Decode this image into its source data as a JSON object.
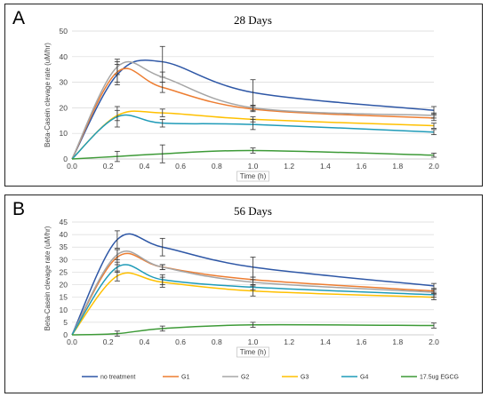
{
  "chart_data": [
    {
      "panel_label": "A",
      "type": "line",
      "title": "28 Days",
      "xlabel": "Time (h)",
      "ylabel": "Beta-Casein clevage rate (uM/hr)",
      "xlim": [
        0.0,
        2.0
      ],
      "ylim": [
        0,
        50
      ],
      "x_ticks": [
        "0.0",
        "0.2",
        "0.4",
        "0.6",
        "0.8",
        "1.0",
        "1.2",
        "1.4",
        "1.6",
        "1.8",
        "2.0"
      ],
      "y_ticks": [
        "0",
        "10",
        "20",
        "30",
        "40",
        "50"
      ],
      "grid": "horizontal",
      "x": [
        0,
        0.25,
        0.5,
        1.0,
        2.0
      ],
      "series": [
        {
          "name": "no treatment",
          "color": "#2e57a6",
          "values": [
            0,
            33,
            38,
            26,
            19
          ],
          "err": [
            0,
            4,
            6,
            5,
            1.5
          ]
        },
        {
          "name": "G1",
          "color": "#ed7d31",
          "values": [
            0,
            34,
            28,
            19.5,
            16
          ],
          "err": [
            0,
            4,
            2,
            1,
            1
          ]
        },
        {
          "name": "G2",
          "color": "#a5a5a5",
          "values": [
            0,
            36,
            32,
            20,
            17
          ],
          "err": [
            0,
            3,
            2,
            1,
            1
          ]
        },
        {
          "name": "G3",
          "color": "#ffc000",
          "values": [
            0,
            17,
            18,
            15.5,
            13
          ],
          "err": [
            0,
            2,
            1.5,
            1,
            1
          ]
        },
        {
          "name": "G4",
          "color": "#1f9bb8",
          "values": [
            0,
            16.5,
            14,
            13.5,
            10.5
          ],
          "err": [
            0,
            4,
            1.5,
            2,
            1
          ]
        },
        {
          "name": "17.5ug EGCG",
          "color": "#3d9a37",
          "values": [
            0,
            1,
            2,
            3.3,
            1.5
          ],
          "err": [
            0,
            2,
            3.5,
            1,
            0.8
          ]
        }
      ]
    },
    {
      "panel_label": "B",
      "type": "line",
      "title": "56 Days",
      "xlabel": "Time (h)",
      "ylabel": "Beta-Casein clevage rate (uM/hr)",
      "xlim": [
        0.0,
        2.0
      ],
      "ylim": [
        0,
        45
      ],
      "x_ticks": [
        "0.0",
        "0.2",
        "0.4",
        "0.6",
        "0.8",
        "1.0",
        "1.2",
        "1.4",
        "1.6",
        "1.8",
        "2.0"
      ],
      "y_ticks": [
        "0",
        "5",
        "10",
        "15",
        "20",
        "25",
        "30",
        "35",
        "40",
        "45"
      ],
      "grid": "horizontal",
      "legend_position": "bottom",
      "x": [
        0,
        0.25,
        0.5,
        1.0,
        2.0
      ],
      "series": [
        {
          "name": "no treatment",
          "color": "#2e57a6",
          "values": [
            0,
            38,
            35,
            27,
            19.5
          ],
          "err": [
            0,
            3.5,
            3.5,
            4,
            1
          ]
        },
        {
          "name": "G1",
          "color": "#ed7d31",
          "values": [
            0,
            31,
            27,
            22,
            17.5
          ],
          "err": [
            0,
            3,
            1,
            1,
            1
          ]
        },
        {
          "name": "G2",
          "color": "#a5a5a5",
          "values": [
            0,
            32,
            27,
            21,
            17
          ],
          "err": [
            0,
            2,
            1,
            1,
            1
          ]
        },
        {
          "name": "G3",
          "color": "#ffc000",
          "values": [
            0,
            23.5,
            21,
            17.5,
            15
          ],
          "err": [
            0,
            2,
            2,
            2,
            1
          ]
        },
        {
          "name": "G4",
          "color": "#1f9bb8",
          "values": [
            0,
            27,
            22,
            19,
            16
          ],
          "err": [
            0,
            2,
            2,
            1,
            1
          ]
        },
        {
          "name": "17.5ug EGCG",
          "color": "#3d9a37",
          "values": [
            0,
            0.5,
            2.5,
            4,
            3.7
          ],
          "err": [
            0,
            1,
            1,
            1,
            1
          ]
        }
      ]
    }
  ]
}
